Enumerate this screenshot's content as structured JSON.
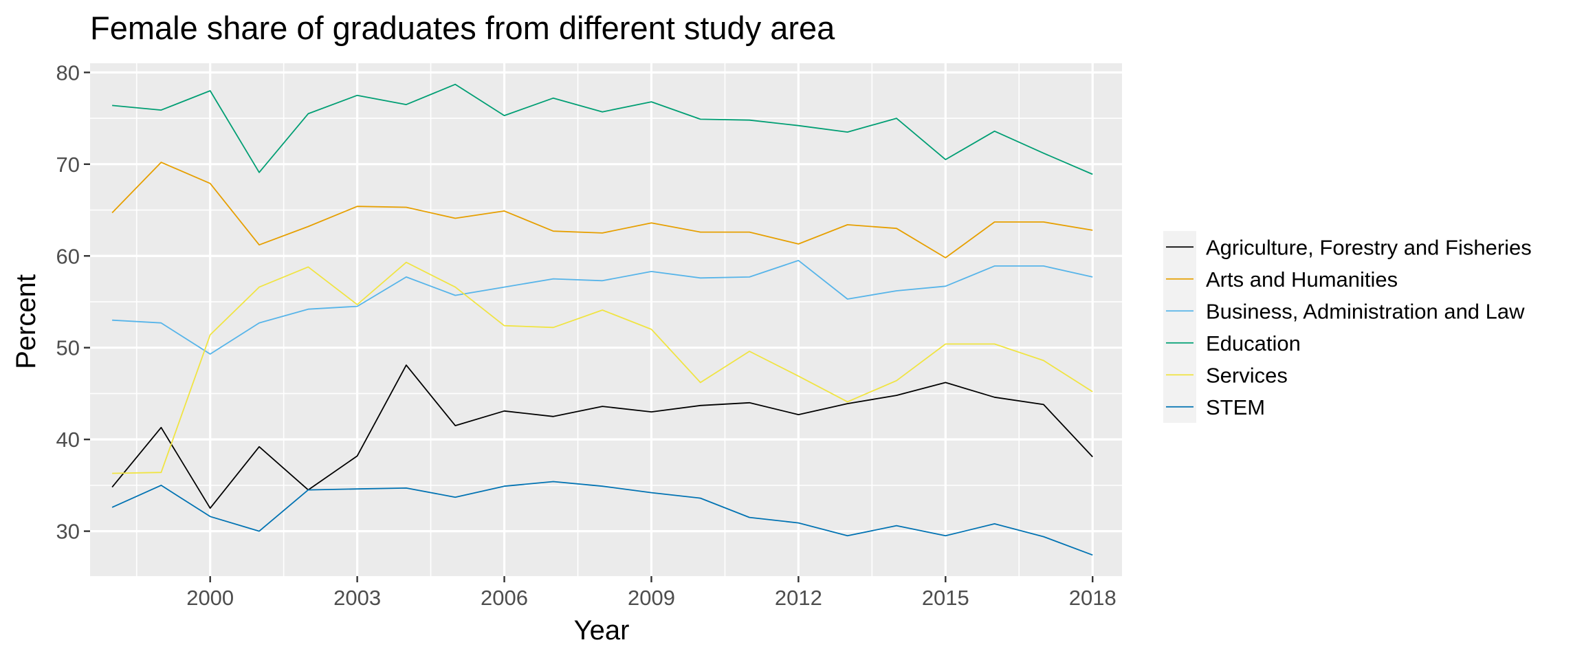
{
  "chart_data": {
    "type": "line",
    "title": "Female share of graduates from different study area",
    "xlabel": "Year",
    "ylabel": "Percent",
    "x": [
      1998,
      1999,
      2000,
      2001,
      2002,
      2003,
      2004,
      2005,
      2006,
      2007,
      2008,
      2009,
      2010,
      2011,
      2012,
      2013,
      2014,
      2015,
      2016,
      2017,
      2018
    ],
    "xlim": [
      1997.55,
      2018.6
    ],
    "ylim": [
      25.1,
      81.0
    ],
    "x_ticks": [
      2000,
      2003,
      2006,
      2009,
      2012,
      2015,
      2018
    ],
    "y_ticks": [
      30,
      40,
      50,
      60,
      70,
      80
    ],
    "grid": true,
    "legend_position": "right",
    "series": [
      {
        "name": "Agriculture, Forestry and Fisheries",
        "color": "#000000",
        "values": [
          34.8,
          41.3,
          32.5,
          39.2,
          34.5,
          38.2,
          48.1,
          41.5,
          43.1,
          42.5,
          43.6,
          43.0,
          43.7,
          44.0,
          42.7,
          43.9,
          44.8,
          46.2,
          44.6,
          43.8,
          38.1
        ]
      },
      {
        "name": "Arts and Humanities",
        "color": "#E69F00",
        "values": [
          64.7,
          70.2,
          67.9,
          61.2,
          63.2,
          65.4,
          65.3,
          64.1,
          64.9,
          62.7,
          62.5,
          63.6,
          62.6,
          62.6,
          61.3,
          63.4,
          63.0,
          59.8,
          63.7,
          63.7,
          62.8
        ]
      },
      {
        "name": "Business, Administration and Law",
        "color": "#56B4E9",
        "values": [
          53.0,
          52.7,
          49.3,
          52.7,
          54.2,
          54.5,
          57.7,
          55.7,
          56.6,
          57.5,
          57.3,
          58.3,
          57.6,
          57.7,
          59.5,
          55.3,
          56.2,
          56.7,
          58.9,
          58.9,
          57.7
        ]
      },
      {
        "name": "Education",
        "color": "#009E73",
        "values": [
          76.4,
          75.9,
          78.0,
          69.1,
          75.5,
          77.5,
          76.5,
          78.7,
          75.3,
          77.2,
          75.7,
          76.8,
          74.9,
          74.8,
          74.2,
          73.5,
          75.0,
          70.5,
          73.6,
          71.2,
          68.9
        ]
      },
      {
        "name": "Services",
        "color": "#F0E442",
        "values": [
          36.3,
          36.4,
          51.4,
          56.6,
          58.8,
          54.7,
          59.3,
          56.6,
          52.4,
          52.2,
          54.1,
          52.0,
          46.2,
          49.6,
          46.9,
          44.1,
          46.4,
          50.4,
          50.4,
          48.6,
          45.2
        ]
      },
      {
        "name": "STEM",
        "color": "#0072B2",
        "values": [
          32.6,
          35.0,
          31.6,
          30.0,
          34.5,
          34.6,
          34.7,
          33.7,
          34.9,
          35.4,
          34.9,
          34.2,
          33.6,
          31.5,
          30.9,
          29.5,
          30.6,
          29.5,
          30.8,
          29.4,
          27.4
        ]
      }
    ]
  }
}
